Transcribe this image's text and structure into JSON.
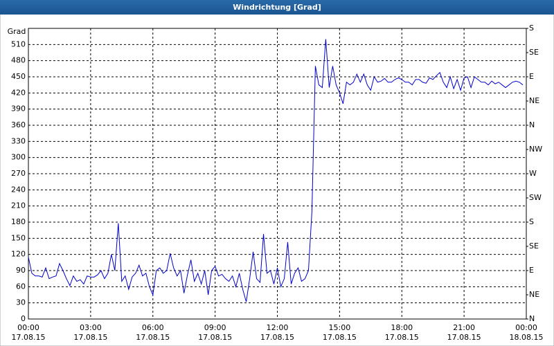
{
  "chart_data": {
    "type": "line",
    "title": "Windrichtung [Grad]",
    "y_label": "Grad",
    "x": [
      0,
      10,
      20,
      30,
      40,
      50,
      60,
      70,
      80,
      90,
      100,
      110,
      120,
      130,
      140,
      150,
      160,
      170,
      180,
      190,
      200,
      210,
      220,
      230,
      240,
      250,
      260,
      270,
      280,
      290,
      300,
      310,
      320,
      330,
      340,
      350,
      360,
      370,
      380,
      390,
      400,
      410,
      420,
      430,
      440,
      450,
      460,
      470,
      480,
      490,
      500,
      510,
      520,
      530,
      540,
      550,
      560,
      570,
      580,
      590,
      600,
      610,
      620,
      630,
      640,
      650,
      660,
      670,
      680,
      690,
      700,
      710,
      720,
      730,
      740,
      750,
      760,
      770,
      780,
      790,
      800,
      810,
      820,
      830,
      840,
      850,
      860,
      870,
      880,
      890,
      900,
      910,
      920,
      930,
      940,
      950,
      960,
      970,
      980,
      990,
      1000,
      1010,
      1020,
      1030,
      1040,
      1050,
      1060,
      1070,
      1080,
      1090,
      1100,
      1110,
      1120,
      1130,
      1140,
      1150,
      1160,
      1170,
      1180,
      1190,
      1200,
      1210,
      1220,
      1230,
      1240,
      1250,
      1260,
      1270,
      1280,
      1290,
      1300,
      1310,
      1320,
      1330,
      1340,
      1350,
      1360,
      1370,
      1380,
      1390,
      1400,
      1410,
      1420,
      1430
    ],
    "series": [
      {
        "name": "Windrichtung",
        "color": "#0000cc",
        "values": [
          115,
          85,
          80,
          80,
          78,
          95,
          75,
          78,
          80,
          103,
          90,
          75,
          62,
          80,
          70,
          73,
          65,
          80,
          78,
          78,
          82,
          90,
          75,
          85,
          120,
          90,
          178,
          70,
          80,
          55,
          78,
          85,
          100,
          80,
          85,
          60,
          45,
          90,
          95,
          85,
          90,
          122,
          95,
          80,
          90,
          48,
          82,
          110,
          70,
          85,
          65,
          90,
          45,
          90,
          98,
          80,
          83,
          75,
          70,
          80,
          60,
          85,
          55,
          32,
          75,
          125,
          75,
          68,
          158,
          85,
          90,
          65,
          95,
          60,
          75,
          143,
          65,
          85,
          95,
          70,
          75,
          90,
          200,
          470,
          435,
          430,
          520,
          430,
          470,
          435,
          420,
          400,
          440,
          435,
          440,
          455,
          440,
          455,
          435,
          425,
          450,
          440,
          442,
          447,
          440,
          440,
          445,
          448,
          445,
          440,
          440,
          435,
          445,
          445,
          440,
          438,
          448,
          445,
          452,
          458,
          440,
          430,
          450,
          428,
          445,
          425,
          448,
          450,
          430,
          450,
          445,
          440,
          440,
          435,
          442,
          437,
          440,
          435,
          430,
          435,
          440,
          442,
          440,
          435
        ]
      }
    ],
    "xlim": [
      0,
      1440
    ],
    "xticks": [
      {
        "value": 0,
        "label": "00:00\n17.08.15"
      },
      {
        "value": 180,
        "label": "03:00\n17.08.15"
      },
      {
        "value": 360,
        "label": "06:00\n17.08.15"
      },
      {
        "value": 540,
        "label": "09:00\n17.08.15"
      },
      {
        "value": 720,
        "label": "12:00\n17.08.15"
      },
      {
        "value": 900,
        "label": "15:00\n17.08.15"
      },
      {
        "value": 1080,
        "label": "18:00\n17.08.15"
      },
      {
        "value": 1260,
        "label": "21:00\n17.08.15"
      },
      {
        "value": 1440,
        "label": "00:00\n18.08.15"
      }
    ],
    "ylim": [
      0,
      540
    ],
    "yticks": [
      0,
      30,
      60,
      90,
      120,
      150,
      180,
      210,
      240,
      270,
      300,
      330,
      360,
      390,
      420,
      450,
      480,
      510
    ],
    "y2lim": [
      0,
      540
    ],
    "y2ticks": [
      {
        "value": 0,
        "label": "N"
      },
      {
        "value": 45,
        "label": "NE"
      },
      {
        "value": 90,
        "label": "E"
      },
      {
        "value": 135,
        "label": "SE"
      },
      {
        "value": 180,
        "label": "S"
      },
      {
        "value": 225,
        "label": "SW"
      },
      {
        "value": 270,
        "label": "W"
      },
      {
        "value": 315,
        "label": "NW"
      },
      {
        "value": 360,
        "label": "N"
      },
      {
        "value": 405,
        "label": "NE"
      },
      {
        "value": 450,
        "label": "E"
      },
      {
        "value": 495,
        "label": "SE"
      },
      {
        "value": 540,
        "label": "S"
      }
    ],
    "grid": true
  }
}
